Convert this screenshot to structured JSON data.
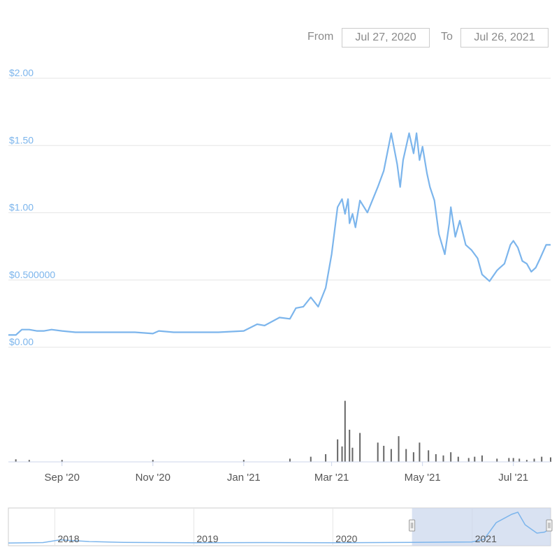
{
  "range_selector": {
    "from_label": "From",
    "from_value": "Jul 27, 2020",
    "to_label": "To",
    "to_value": "Jul 26, 2021"
  },
  "colors": {
    "price_line": "#7cb5ec",
    "volume_bar": "#666666",
    "navigator_mask": "#c9d6ec"
  },
  "chart_data": [
    {
      "type": "line",
      "title": "",
      "xlabel": "",
      "ylabel": "",
      "y_tick_labels": [
        "$0.00",
        "$0.500000",
        "$1.00",
        "$1.50",
        "$2.00"
      ],
      "y_tick_values": [
        0,
        0.5,
        1.0,
        1.5,
        2.0
      ],
      "ylim": [
        0,
        2.0
      ],
      "xlim": [
        "2020-07-27",
        "2021-07-26"
      ],
      "x_tick_labels": [
        "Sep '20",
        "Nov '20",
        "Jan '21",
        "Mar '21",
        "May '21",
        "Jul '21"
      ],
      "x_tick_dates": [
        "2020-09-01",
        "2020-11-01",
        "2021-01-01",
        "2021-03-01",
        "2021-05-01",
        "2021-07-01"
      ],
      "grid": true,
      "series": [
        {
          "x": [
            "2020-07-27",
            "2020-08-01",
            "2020-08-05",
            "2020-08-10",
            "2020-08-15",
            "2020-08-20",
            "2020-08-25",
            "2020-09-01",
            "2020-09-10",
            "2020-09-20",
            "2020-10-01",
            "2020-10-10",
            "2020-10-20",
            "2020-11-01",
            "2020-11-05",
            "2020-11-15",
            "2020-12-01",
            "2020-12-15",
            "2021-01-01",
            "2021-01-10",
            "2021-01-15",
            "2021-01-25",
            "2021-02-01",
            "2021-02-05",
            "2021-02-10",
            "2021-02-15",
            "2021-02-20",
            "2021-02-25",
            "2021-03-01",
            "2021-03-05",
            "2021-03-08",
            "2021-03-10",
            "2021-03-12",
            "2021-03-13",
            "2021-03-15",
            "2021-03-17",
            "2021-03-20",
            "2021-03-25",
            "2021-04-01",
            "2021-04-05",
            "2021-04-10",
            "2021-04-14",
            "2021-04-16",
            "2021-04-18",
            "2021-04-22",
            "2021-04-25",
            "2021-04-27",
            "2021-04-29",
            "2021-05-01",
            "2021-05-04",
            "2021-05-06",
            "2021-05-09",
            "2021-05-12",
            "2021-05-16",
            "2021-05-19",
            "2021-05-20",
            "2021-05-23",
            "2021-05-26",
            "2021-05-30",
            "2021-06-03",
            "2021-06-07",
            "2021-06-10",
            "2021-06-15",
            "2021-06-20",
            "2021-06-22",
            "2021-06-25",
            "2021-06-29",
            "2021-07-01",
            "2021-07-04",
            "2021-07-07",
            "2021-07-10",
            "2021-07-13",
            "2021-07-16",
            "2021-07-19",
            "2021-07-23",
            "2021-07-26"
          ],
          "y": [
            0.05,
            0.05,
            0.09,
            0.09,
            0.08,
            0.08,
            0.09,
            0.08,
            0.07,
            0.07,
            0.07,
            0.07,
            0.07,
            0.06,
            0.08,
            0.07,
            0.07,
            0.07,
            0.08,
            0.13,
            0.12,
            0.18,
            0.17,
            0.25,
            0.26,
            0.33,
            0.26,
            0.4,
            0.65,
            1.0,
            1.06,
            0.95,
            1.06,
            0.88,
            0.95,
            0.85,
            1.05,
            0.96,
            1.15,
            1.27,
            1.55,
            1.32,
            1.15,
            1.35,
            1.55,
            1.4,
            1.55,
            1.35,
            1.45,
            1.25,
            1.15,
            1.05,
            0.8,
            0.65,
            0.88,
            1.0,
            0.78,
            0.9,
            0.72,
            0.68,
            0.62,
            0.5,
            0.45,
            0.53,
            0.55,
            0.58,
            0.72,
            0.75,
            0.7,
            0.6,
            0.58,
            0.52,
            0.55,
            0.62,
            0.72,
            0.72
          ]
        }
      ]
    },
    {
      "type": "bar",
      "title": "",
      "xlabel": "",
      "ylabel": "",
      "series": [
        {
          "x": [
            "2020-08-01",
            "2020-08-10",
            "2020-09-01",
            "2020-11-01",
            "2021-01-01",
            "2021-02-01",
            "2021-02-15",
            "2021-02-25",
            "2021-03-05",
            "2021-03-08",
            "2021-03-10",
            "2021-03-13",
            "2021-03-15",
            "2021-03-20",
            "2021-04-01",
            "2021-04-05",
            "2021-04-10",
            "2021-04-15",
            "2021-04-20",
            "2021-04-25",
            "2021-04-29",
            "2021-05-05",
            "2021-05-10",
            "2021-05-15",
            "2021-05-20",
            "2021-05-25",
            "2021-06-01",
            "2021-06-05",
            "2021-06-10",
            "2021-06-20",
            "2021-06-28",
            "2021-07-01",
            "2021-07-05",
            "2021-07-10",
            "2021-07-15",
            "2021-07-20",
            "2021-07-26"
          ],
          "y": [
            0.04,
            0.03,
            0.03,
            0.03,
            0.03,
            0.05,
            0.08,
            0.12,
            0.35,
            0.24,
            0.95,
            0.5,
            0.22,
            0.45,
            0.3,
            0.25,
            0.2,
            0.4,
            0.2,
            0.15,
            0.3,
            0.18,
            0.12,
            0.1,
            0.15,
            0.08,
            0.06,
            0.08,
            0.1,
            0.05,
            0.06,
            0.06,
            0.05,
            0.03,
            0.05,
            0.08,
            0.07
          ]
        }
      ]
    },
    {
      "type": "area",
      "title": "",
      "xlabel": "",
      "ylabel": "",
      "x_tick_labels": [
        "2018",
        "2019",
        "2020",
        "2021"
      ],
      "xlim": [
        "2017-09-01",
        "2021-07-26"
      ],
      "selected_range": [
        "2020-07-27",
        "2021-07-26"
      ],
      "series": [
        {
          "x": [
            "2017-09-01",
            "2017-12-01",
            "2018-01-15",
            "2018-04-01",
            "2018-07-01",
            "2019-01-01",
            "2019-07-01",
            "2020-01-01",
            "2020-07-27",
            "2020-12-31",
            "2021-02-01",
            "2021-03-05",
            "2021-04-15",
            "2021-05-01",
            "2021-05-20",
            "2021-06-20",
            "2021-07-10",
            "2021-07-26"
          ],
          "y": [
            0.03,
            0.05,
            0.18,
            0.1,
            0.06,
            0.04,
            0.05,
            0.04,
            0.06,
            0.08,
            0.2,
            1.0,
            1.4,
            1.5,
            0.9,
            0.5,
            0.55,
            0.72
          ]
        }
      ]
    }
  ]
}
